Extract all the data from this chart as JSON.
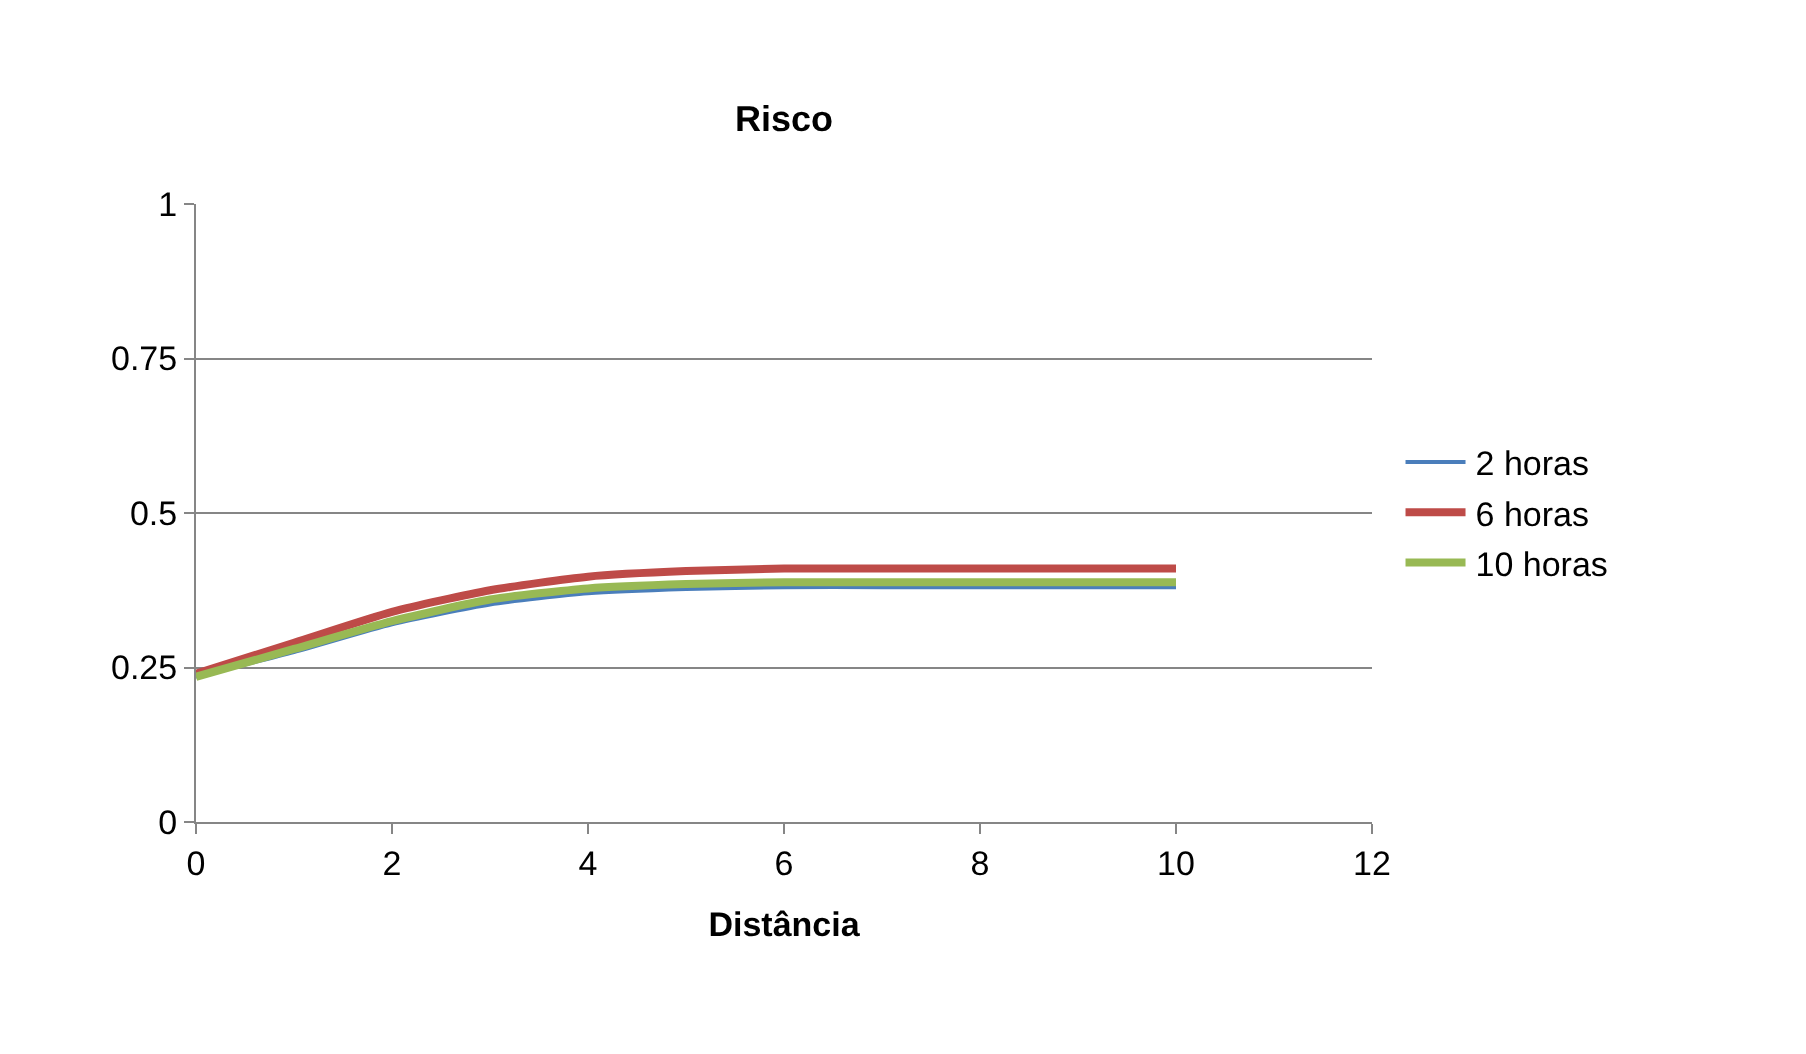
{
  "chart_data": {
    "type": "line",
    "title": "Risco",
    "xlabel": "Distância",
    "x": [
      0,
      1,
      2,
      3,
      4,
      5,
      6,
      7,
      8,
      9,
      10
    ],
    "series": [
      {
        "name": "2 horas",
        "color": "#4a7ebb",
        "values": [
          0.235,
          0.275,
          0.32,
          0.352,
          0.37,
          0.377,
          0.38,
          0.38,
          0.38,
          0.38,
          0.38
        ]
      },
      {
        "name": "6 horas",
        "color": "#be4b48",
        "values": [
          0.24,
          0.29,
          0.34,
          0.375,
          0.397,
          0.406,
          0.41,
          0.41,
          0.41,
          0.41,
          0.41
        ]
      },
      {
        "name": "10 horas",
        "color": "#98b954",
        "values": [
          0.235,
          0.28,
          0.325,
          0.36,
          0.378,
          0.385,
          0.388,
          0.388,
          0.388,
          0.388,
          0.388
        ]
      }
    ],
    "xlim": [
      0,
      12
    ],
    "xticks": [
      0,
      2,
      4,
      6,
      8,
      10,
      12
    ],
    "ylim": [
      0,
      1
    ],
    "yticks": [
      0,
      {
        "value": 0.25,
        "label": "0.25"
      },
      {
        "value": 0.5,
        "label": "0.5"
      },
      {
        "value": 0.75,
        "label": "0.75"
      },
      1
    ],
    "grid": "y",
    "legend": "right",
    "marker": "none",
    "line_style": "solid"
  }
}
